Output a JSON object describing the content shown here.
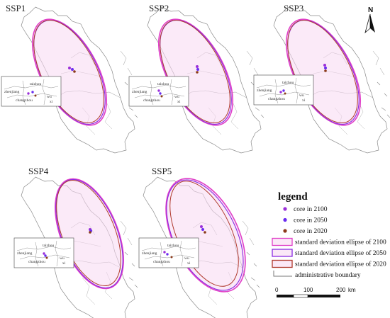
{
  "panels": [
    {
      "title": "SSP1"
    },
    {
      "title": "SSP2"
    },
    {
      "title": "SSP3"
    },
    {
      "title": "SSP4"
    },
    {
      "title": "SSP5"
    }
  ],
  "inset_labels": {
    "taizhou": "taizhou",
    "zhenjiang": "zhenjiang",
    "changzhou": "changzhou",
    "wu": "wu",
    "xi": "xi"
  },
  "legend": {
    "title": "legend",
    "items": [
      {
        "label": "core in 2100",
        "color": "#9b30d9",
        "kind": "dot"
      },
      {
        "label": "core in 2050",
        "color": "#6a2cf0",
        "kind": "dot"
      },
      {
        "label": "core in 2020",
        "color": "#8b3a1a",
        "kind": "dot"
      },
      {
        "label": "standard deviation ellipse of 2100",
        "color": "#e040c8",
        "kind": "box"
      },
      {
        "label": "standard deviation ellipse of 2050",
        "color": "#8a2be2",
        "kind": "box"
      },
      {
        "label": "standard deviation ellipse of 2020",
        "color": "#b03a2e",
        "kind": "box"
      },
      {
        "label": "administrative boundary",
        "color": "#777777",
        "kind": "line"
      }
    ]
  },
  "scale": {
    "t0": "0",
    "t1": "100",
    "t2": "200",
    "unit": "km"
  },
  "north": {
    "label": "N"
  },
  "colors": {
    "ellipse_2100": "#e040c8",
    "ellipse_2050": "#8a2be2",
    "ellipse_2020": "#b03a2e",
    "fill_2100": "#f7d9f2",
    "boundary": "#888888"
  }
}
